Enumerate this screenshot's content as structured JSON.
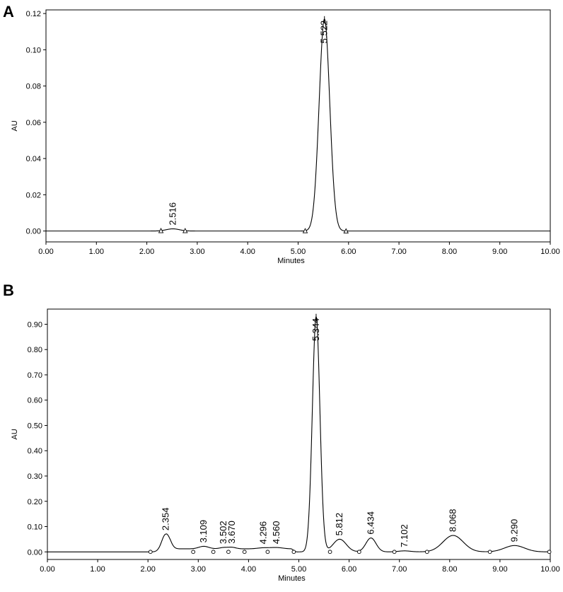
{
  "chart_data": [
    {
      "type": "line",
      "panel_label": "A",
      "xlabel": "Minutes",
      "ylabel": "AU",
      "xlim": [
        0,
        10
      ],
      "ylim": [
        -0.006,
        0.122
      ],
      "x_ticks": [
        "0.00",
        "1.00",
        "2.00",
        "3.00",
        "4.00",
        "5.00",
        "6.00",
        "7.00",
        "8.00",
        "9.00",
        "10.00"
      ],
      "y_ticks": [
        "0.00",
        "0.02",
        "0.04",
        "0.06",
        "0.08",
        "0.10",
        "0.12"
      ],
      "grid": false,
      "peaks": [
        {
          "rt": 2.516,
          "label": "2.516",
          "height": 0.0012,
          "width": 0.13,
          "start": 2.28,
          "end": 2.76
        },
        {
          "rt": 5.522,
          "label": "5.522",
          "height": 0.117,
          "width": 0.105,
          "start": 5.14,
          "end": 5.95
        }
      ],
      "baseline": 0.0
    },
    {
      "type": "line",
      "panel_label": "B",
      "xlabel": "Minutes",
      "ylabel": "AU",
      "xlim": [
        0,
        10
      ],
      "ylim": [
        -0.03,
        0.96
      ],
      "x_ticks": [
        "0.00",
        "1.00",
        "2.00",
        "3.00",
        "4.00",
        "5.00",
        "6.00",
        "7.00",
        "8.00",
        "9.00",
        "10.00"
      ],
      "y_ticks": [
        "0.00",
        "0.10",
        "0.20",
        "0.30",
        "0.40",
        "0.50",
        "0.60",
        "0.70",
        "0.80",
        "0.90"
      ],
      "grid": false,
      "peaks": [
        {
          "rt": 2.354,
          "label": "2.354",
          "height": 0.07,
          "width": 0.08
        },
        {
          "rt": 3.109,
          "label": "3.109",
          "height": 0.01,
          "width": 0.1
        },
        {
          "rt": 3.502,
          "label": "3.502",
          "height": 0.005,
          "width": 0.08
        },
        {
          "rt": 3.67,
          "label": "3.670",
          "height": 0.006,
          "width": 0.08
        },
        {
          "rt": 4.296,
          "label": "4.296",
          "height": 0.004,
          "width": 0.12
        },
        {
          "rt": 4.56,
          "label": "4.560",
          "height": 0.005,
          "width": 0.12
        },
        {
          "rt": 5.344,
          "label": "5.344",
          "height": 0.93,
          "width": 0.075
        },
        {
          "rt": 5.812,
          "label": "5.812",
          "height": 0.05,
          "width": 0.13
        },
        {
          "rt": 6.434,
          "label": "6.434",
          "height": 0.055,
          "width": 0.1
        },
        {
          "rt": 7.102,
          "label": "7.102",
          "height": 0.004,
          "width": 0.12
        },
        {
          "rt": 8.068,
          "label": "8.068",
          "height": 0.065,
          "width": 0.2
        },
        {
          "rt": 9.29,
          "label": "9.290",
          "height": 0.025,
          "width": 0.2
        }
      ],
      "baseline_offsets": [
        {
          "from": 2.35,
          "to": 4.95,
          "value": 0.012
        }
      ],
      "baseline_markers": [
        2.05,
        2.9,
        3.3,
        3.6,
        3.92,
        4.38,
        4.9,
        5.62,
        6.2,
        6.9,
        7.55,
        8.8,
        9.98
      ]
    }
  ]
}
